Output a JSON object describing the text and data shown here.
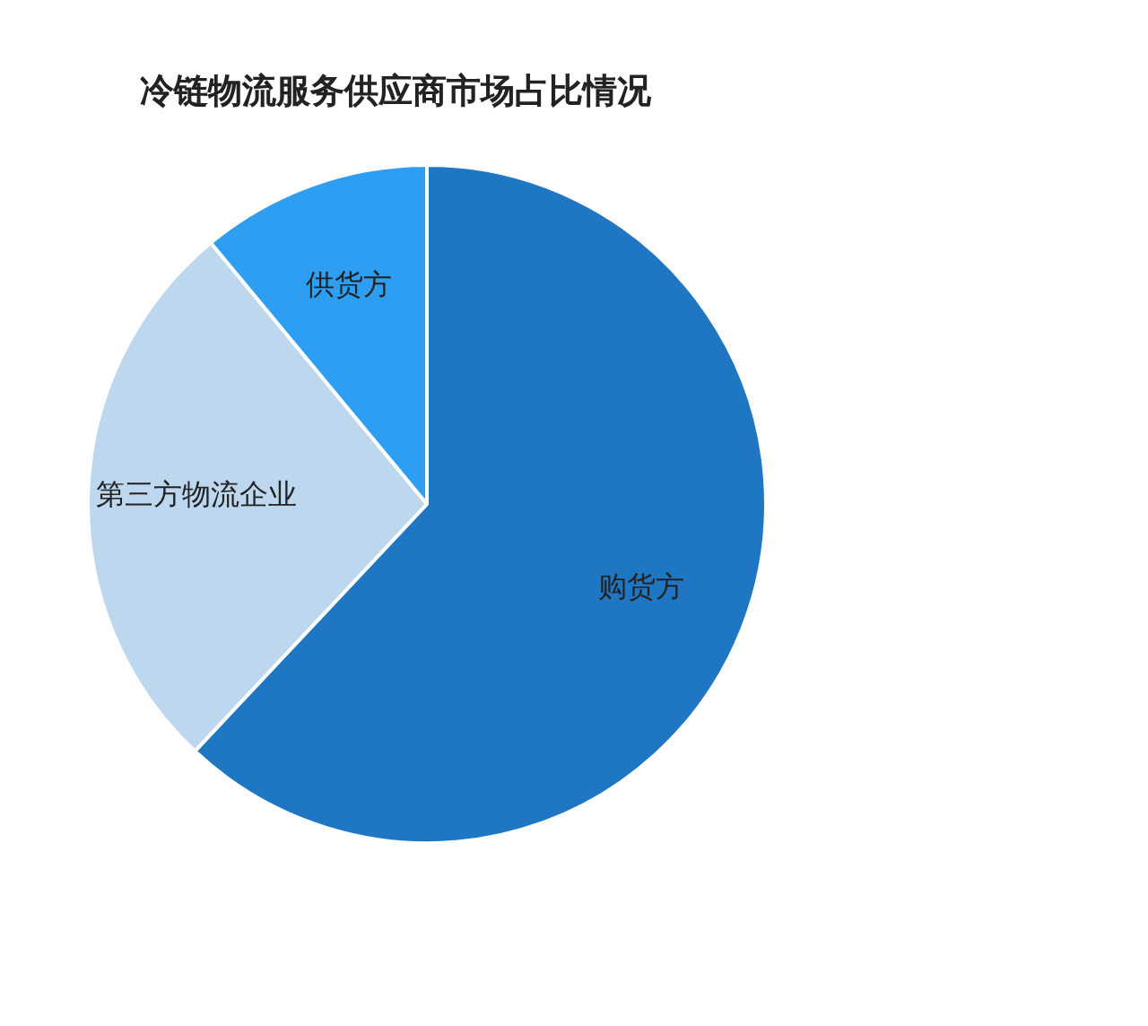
{
  "chart_data": {
    "type": "pie",
    "title": "冷链物流服务供应商市场占比情况",
    "categories": [
      "购货方",
      "第三方物流企业",
      "供货方"
    ],
    "values": [
      62,
      27,
      11
    ],
    "colors": [
      "#1f77c4",
      "#bdd7ee",
      "#2e9ef2"
    ],
    "legend": false
  }
}
